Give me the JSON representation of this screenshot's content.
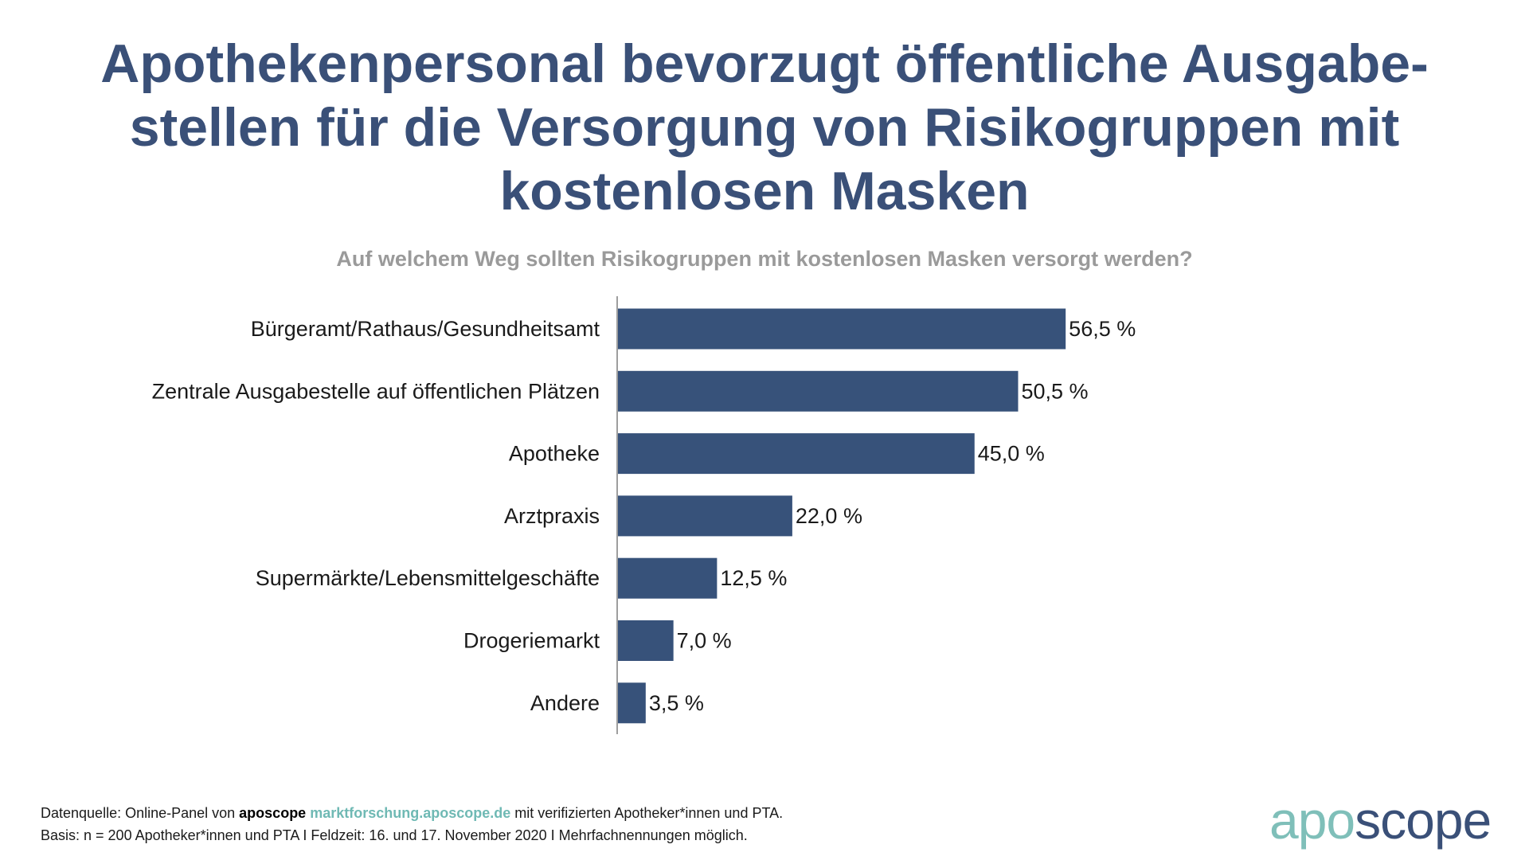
{
  "title_lines": [
    "Apothekenpersonal bevorzugt öffentliche Ausgabe-",
    "stellen für die Versorgung von Risikogruppen mit",
    "kostenlosen Masken"
  ],
  "colors": {
    "bar": "#37527a",
    "title": "#3a5078",
    "subtitle": "#9a9a9a",
    "logo_apo": "#7fbfb9",
    "logo_scope": "#3a5078",
    "link": "#6fb9b4"
  },
  "chart_data": {
    "type": "bar",
    "orientation": "horizontal",
    "title": "Auf welchem Weg sollten Risikogruppen mit kostenlosen Masken versorgt werden?",
    "categories": [
      "Bürgeramt/Rathaus/Gesundheitsamt",
      "Zentrale Ausgabestelle auf öffentlichen Plätzen",
      "Apotheke",
      "Arztpraxis",
      "Supermärkte/Lebensmittelgeschäfte",
      "Drogeriemarkt",
      "Andere"
    ],
    "values": [
      56.5,
      50.5,
      45.0,
      22.0,
      12.5,
      7.0,
      3.5
    ],
    "value_labels": [
      "56,5 %",
      "50,5 %",
      "45,0 %",
      "22,0 %",
      "12,5 %",
      "7,0 %",
      "3,5 %"
    ],
    "unit": "%",
    "xlim": [
      0,
      100
    ],
    "grid": false
  },
  "footer": {
    "line1_prefix": "Datenquelle: Online-Panel von ",
    "line1_brand": "aposcope",
    "line1_link": "marktforschung.aposcope.de",
    "line1_suffix": " mit verifizierten Apotheker*innen und PTA.",
    "line2": "Basis: n = 200 Apotheker*innen und PTA I Feldzeit: 16. und 17. November 2020 I Mehrfachnennungen möglich."
  },
  "logo": {
    "part1": "apo",
    "part2": "scope"
  }
}
